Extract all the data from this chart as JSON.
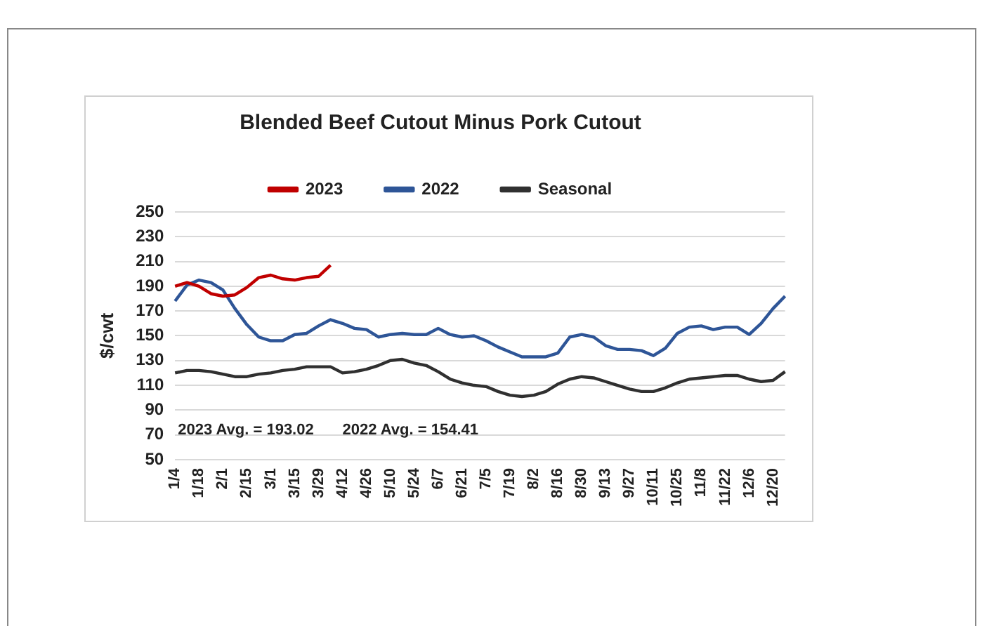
{
  "chart_data": {
    "type": "line",
    "title": "Blended Beef Cutout Minus Pork Cutout",
    "ylabel": "$/cwt",
    "categories": [
      "1/4",
      null,
      "1/18",
      null,
      "2/1",
      null,
      "2/15",
      null,
      "3/1",
      null,
      "3/15",
      null,
      "3/29",
      null,
      "4/12",
      null,
      "4/26",
      null,
      "5/10",
      null,
      "5/24",
      null,
      "6/7",
      null,
      "6/21",
      null,
      "7/5",
      null,
      "7/19",
      null,
      "8/2",
      null,
      "8/16",
      null,
      "8/30",
      null,
      "9/13",
      null,
      "9/27",
      null,
      "10/11",
      null,
      "10/25",
      null,
      "11/8",
      null,
      "11/22",
      null,
      "12/6",
      null,
      "12/20",
      null
    ],
    "series": [
      {
        "name": "2023",
        "color": "#c00000",
        "values": [
          190,
          193,
          190,
          184,
          182,
          183,
          189,
          197,
          199,
          196,
          195,
          197,
          198,
          207,
          null,
          null,
          null,
          null,
          null,
          null,
          null,
          null,
          null,
          null,
          null,
          null,
          null,
          null,
          null,
          null,
          null,
          null,
          null,
          null,
          null,
          null,
          null,
          null,
          null,
          null,
          null,
          null,
          null,
          null,
          null,
          null,
          null,
          null,
          null,
          null,
          null,
          null
        ]
      },
      {
        "name": "2022",
        "color": "#2e5597",
        "values": [
          178,
          191,
          195,
          193,
          187,
          172,
          159,
          149,
          146,
          146,
          151,
          152,
          158,
          163,
          160,
          156,
          155,
          149,
          151,
          152,
          151,
          151,
          156,
          151,
          149,
          150,
          146,
          141,
          137,
          133,
          133,
          133,
          136,
          149,
          151,
          149,
          142,
          139,
          139,
          138,
          134,
          140,
          152,
          157,
          158,
          155,
          157,
          157,
          151,
          160,
          172,
          182
        ]
      },
      {
        "name": "Seasonal",
        "color": "#303030",
        "values": [
          120,
          122,
          122,
          121,
          119,
          117,
          117,
          119,
          120,
          122,
          123,
          125,
          125,
          125,
          120,
          121,
          123,
          126,
          130,
          131,
          128,
          126,
          121,
          115,
          112,
          110,
          109,
          105,
          102,
          101,
          102,
          105,
          111,
          115,
          117,
          116,
          113,
          110,
          107,
          105,
          105,
          108,
          112,
          115,
          116,
          117,
          118,
          118,
          115,
          113,
          114,
          121
        ]
      }
    ],
    "ylim": [
      50,
      250
    ],
    "yticks": [
      50,
      70,
      90,
      110,
      130,
      150,
      170,
      190,
      210,
      230,
      250
    ],
    "grid": "y",
    "legend": "top",
    "marker": "none",
    "line_style": "solid",
    "annotations": [
      "2023 Avg. = 193.02",
      "2022 Avg. = 154.41"
    ]
  }
}
